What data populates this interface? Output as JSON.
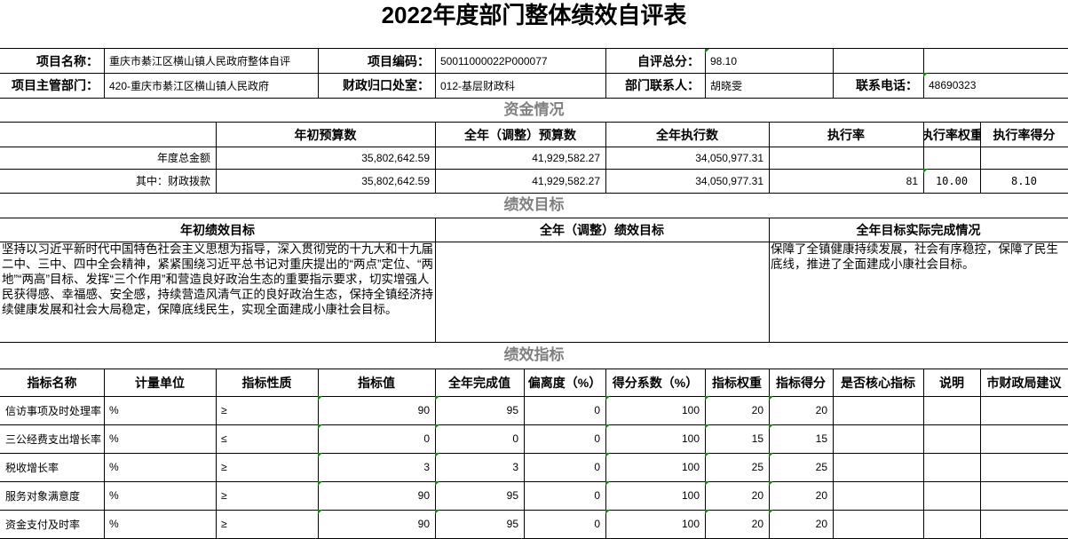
{
  "title": "2022年度部门整体绩效自评表",
  "info": {
    "project_name_label": "项目名称：",
    "project_name": "重庆市綦江区横山镇人民政府整体自评",
    "project_code_label": "项目编码：",
    "project_code": "50011000022P000077",
    "self_score_label": "自评总分：",
    "self_score": "98.10",
    "dept_label": "项目主管部门：",
    "dept": "420-重庆市綦江区横山镇人民政府",
    "finance_office_label": "财政归口处室：",
    "finance_office": "012-基层财政科",
    "contact_label": "部门联系人：",
    "contact": "胡晓雯",
    "phone_label": "联系电话：",
    "phone": "48690323"
  },
  "funding": {
    "section_title": "资金情况",
    "headers": [
      "",
      "年初预算数",
      "全年（调整）预算数",
      "全年执行数",
      "执行率",
      "执行率权重",
      "执行率得分"
    ],
    "rows": [
      [
        "年度总金额",
        "35,802,642.59",
        "41,929,582.27",
        "34,050,977.31",
        "",
        "",
        ""
      ],
      [
        "其中：财政拨款",
        "35,802,642.59",
        "41,929,582.27",
        "34,050,977.31",
        "81",
        "10.00",
        "8.10"
      ]
    ]
  },
  "goals": {
    "section_title": "绩效目标",
    "headers": [
      "年初绩效目标",
      "全年（调整）绩效目标",
      "全年目标实际完成情况"
    ],
    "initial": "坚持以习近平新时代中国特色社会主义思想为指导，深入贯彻党的十九大和十九届二中、三中、四中全会精神，紧紧围绕习近平总书记对重庆提出的“两点”定位、“两地”“两高”目标、发挥“三个作用”和营造良好政治生态的重要指示要求，切实增强人民获得感、幸福感、安全感，持续营造风清气正的良好政治生态，保持全镇经济持续健康发展和社会大局稳定，保障底线民生，实现全面建成小康社会目标。",
    "adjusted": "",
    "actual": "保障了全镇健康持续发展，社会有序稳控，保障了民生底线，推进了全面建成小康社会目标。"
  },
  "indicators": {
    "section_title": "绩效指标",
    "headers": [
      "指标名称",
      "计量单位",
      "指标性质",
      "指标值",
      "全年完成值",
      "偏离度（%）",
      "得分系数（%）",
      "指标权重",
      "指标得分",
      "是否核心指标",
      "说明",
      "市财政局建议"
    ],
    "rows": [
      [
        "信访事项及时处理率",
        "%",
        "≥",
        "90",
        "95",
        "0",
        "100",
        "20",
        "20",
        "",
        "",
        ""
      ],
      [
        "三公经费支出增长率",
        "%",
        "≤",
        "0",
        "0",
        "0",
        "100",
        "15",
        "15",
        "",
        "",
        ""
      ],
      [
        "税收增长率",
        "%",
        "≥",
        "3",
        "3",
        "0",
        "100",
        "25",
        "25",
        "",
        "",
        ""
      ],
      [
        "服务对象满意度",
        "%",
        "≥",
        "90",
        "95",
        "0",
        "100",
        "20",
        "20",
        "",
        "",
        ""
      ],
      [
        "资金支付及时率",
        "%",
        "≥",
        "90",
        "95",
        "0",
        "100",
        "20",
        "20",
        "",
        "",
        ""
      ]
    ]
  },
  "colors": {
    "section_title": "#808080",
    "cell_marker": "#1a7f1a"
  }
}
